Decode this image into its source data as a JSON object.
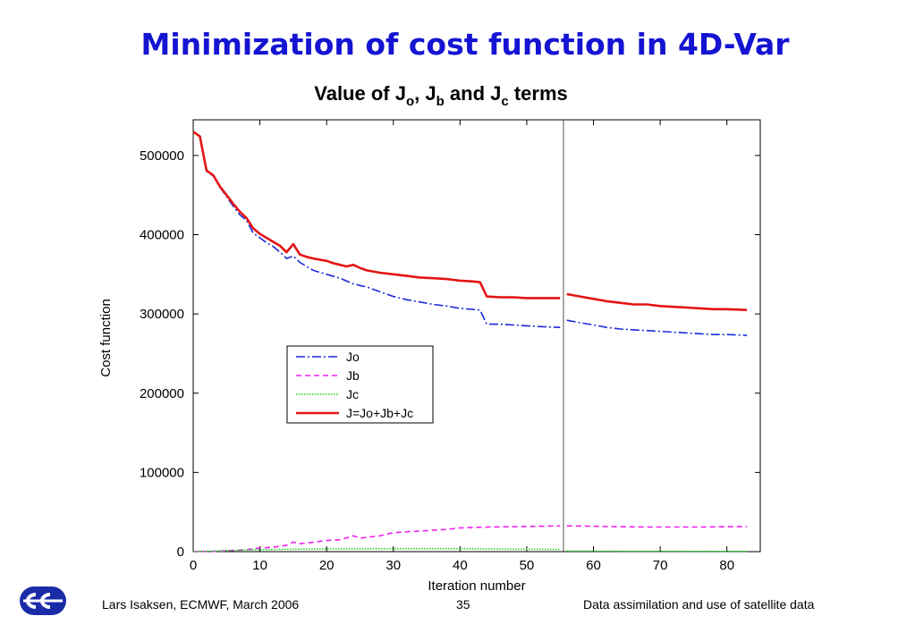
{
  "slide": {
    "title": "Minimization of cost function in 4D-Var",
    "footer_left": "Lars Isaksen, ECMWF, March 2006",
    "page_number": "35",
    "footer_right": "Data assimilation and use of satellite data"
  },
  "logo": {
    "icon": "ecmwf-logo",
    "color": "#1a2ba8"
  },
  "chart_data": {
    "type": "line",
    "title_parts": [
      "Value of J",
      "o",
      ", J",
      "b",
      " and J",
      "c",
      " terms"
    ],
    "xlabel": "Iteration number",
    "ylabel": "Cost function",
    "xlim": [
      0,
      85
    ],
    "ylim": [
      0,
      545000
    ],
    "xticks": [
      0,
      10,
      20,
      30,
      40,
      50,
      60,
      70,
      80
    ],
    "yticks": [
      0,
      100000,
      200000,
      300000,
      400000,
      500000
    ],
    "vline_x": 55.5,
    "grid": false,
    "legend_position": "center-left",
    "series": [
      {
        "name": "Jo",
        "color": "#1a2ad6",
        "dash": "10,3,2,3",
        "width": 1.6,
        "segments": [
          [
            [
              0,
              530000
            ],
            [
              1,
              524000
            ],
            [
              2,
              480000
            ],
            [
              3,
              474000
            ],
            [
              4,
              460000
            ],
            [
              5,
              448000
            ],
            [
              6,
              436000
            ],
            [
              7,
              425000
            ],
            [
              8,
              418000
            ],
            [
              9,
              402000
            ],
            [
              10,
              396000
            ],
            [
              11,
              390000
            ],
            [
              12,
              385000
            ],
            [
              13,
              378000
            ],
            [
              14,
              370000
            ],
            [
              15,
              373000
            ],
            [
              16,
              365000
            ],
            [
              17,
              360000
            ],
            [
              18,
              355000
            ],
            [
              20,
              350000
            ],
            [
              22,
              345000
            ],
            [
              24,
              338000
            ],
            [
              26,
              334000
            ],
            [
              28,
              328000
            ],
            [
              30,
              322000
            ],
            [
              32,
              318000
            ],
            [
              34,
              315000
            ],
            [
              36,
              312000
            ],
            [
              38,
              310000
            ],
            [
              40,
              307000
            ],
            [
              43,
              305000
            ],
            [
              44,
              287000
            ],
            [
              46,
              287000
            ],
            [
              48,
              286000
            ],
            [
              50,
              285000
            ],
            [
              52,
              284000
            ],
            [
              55,
              283000
            ]
          ],
          [
            [
              56,
              292000
            ],
            [
              58,
              289000
            ],
            [
              60,
              286000
            ],
            [
              62,
              283000
            ],
            [
              64,
              281000
            ],
            [
              66,
              280000
            ],
            [
              68,
              279000
            ],
            [
              70,
              278000
            ],
            [
              72,
              277000
            ],
            [
              74,
              276000
            ],
            [
              76,
              275000
            ],
            [
              78,
              274000
            ],
            [
              80,
              274000
            ],
            [
              83,
              273000
            ]
          ]
        ]
      },
      {
        "name": "Jb",
        "color": "#ee20ee",
        "dash": "6,4",
        "width": 1.6,
        "segments": [
          [
            [
              0,
              0
            ],
            [
              4,
              500
            ],
            [
              6,
              1500
            ],
            [
              8,
              2500
            ],
            [
              10,
              4500
            ],
            [
              12,
              5500
            ],
            [
              14,
              8000
            ],
            [
              15,
              12000
            ],
            [
              16,
              10000
            ],
            [
              18,
              12000
            ],
            [
              20,
              14000
            ],
            [
              22,
              15000
            ],
            [
              24,
              20000
            ],
            [
              25,
              17000
            ],
            [
              28,
              20000
            ],
            [
              30,
              24000
            ],
            [
              32,
              25000
            ],
            [
              34,
              26000
            ],
            [
              36,
              27000
            ],
            [
              38,
              28000
            ],
            [
              40,
              30000
            ],
            [
              44,
              31000
            ],
            [
              48,
              31500
            ],
            [
              52,
              32000
            ],
            [
              55,
              32500
            ]
          ],
          [
            [
              56,
              32500
            ],
            [
              60,
              32000
            ],
            [
              64,
              31500
            ],
            [
              68,
              31000
            ],
            [
              72,
              31000
            ],
            [
              76,
              31000
            ],
            [
              80,
              31500
            ],
            [
              83,
              31500
            ]
          ]
        ]
      },
      {
        "name": "Jc",
        "color": "#1fd01f",
        "dash": "1.5,1.5",
        "width": 1.5,
        "segments": [
          [
            [
              0,
              0
            ],
            [
              5,
              1500
            ],
            [
              10,
              2500
            ],
            [
              15,
              3000
            ],
            [
              20,
              3500
            ],
            [
              30,
              3800
            ],
            [
              40,
              3800
            ],
            [
              50,
              3000
            ],
            [
              55,
              2800
            ]
          ],
          [
            [
              56,
              800
            ],
            [
              65,
              500
            ],
            [
              75,
              300
            ],
            [
              83,
              300
            ]
          ]
        ]
      },
      {
        "name": "J=Jo+Jb+Jc",
        "color": "#e41414",
        "dash": "",
        "width": 2.6,
        "segments": [
          [
            [
              0,
              530000
            ],
            [
              1,
              524000
            ],
            [
              2,
              481000
            ],
            [
              3,
              475000
            ],
            [
              4,
              461000
            ],
            [
              5,
              450000
            ],
            [
              6,
              439000
            ],
            [
              7,
              429000
            ],
            [
              8,
              421000
            ],
            [
              9,
              408000
            ],
            [
              10,
              401000
            ],
            [
              11,
              396000
            ],
            [
              12,
              391000
            ],
            [
              13,
              386000
            ],
            [
              14,
              378000
            ],
            [
              15,
              388000
            ],
            [
              16,
              375000
            ],
            [
              17,
              372000
            ],
            [
              18,
              370000
            ],
            [
              20,
              367000
            ],
            [
              21,
              364000
            ],
            [
              22,
              362000
            ],
            [
              23,
              360000
            ],
            [
              24,
              362000
            ],
            [
              25,
              358000
            ],
            [
              26,
              355000
            ],
            [
              28,
              352000
            ],
            [
              30,
              350000
            ],
            [
              32,
              348000
            ],
            [
              34,
              346000
            ],
            [
              36,
              345000
            ],
            [
              38,
              344000
            ],
            [
              40,
              342000
            ],
            [
              42,
              341000
            ],
            [
              43,
              340000
            ],
            [
              44,
              322000
            ],
            [
              46,
              321000
            ],
            [
              48,
              321000
            ],
            [
              50,
              320000
            ],
            [
              52,
              320000
            ],
            [
              54,
              320000
            ],
            [
              55,
              320000
            ]
          ],
          [
            [
              56,
              325000
            ],
            [
              58,
              322000
            ],
            [
              60,
              319000
            ],
            [
              62,
              316000
            ],
            [
              64,
              314000
            ],
            [
              66,
              312000
            ],
            [
              68,
              312000
            ],
            [
              70,
              310000
            ],
            [
              72,
              309000
            ],
            [
              74,
              308000
            ],
            [
              76,
              307000
            ],
            [
              78,
              306000
            ],
            [
              80,
              306000
            ],
            [
              83,
              305000
            ]
          ]
        ]
      }
    ]
  }
}
